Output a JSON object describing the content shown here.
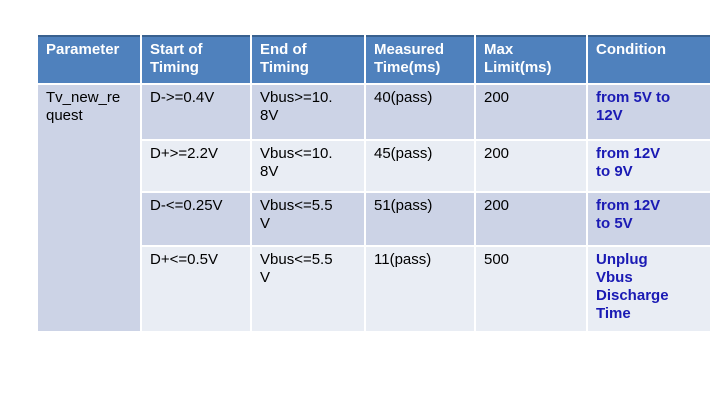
{
  "table": {
    "headers": [
      "Parameter",
      "Start of\nTiming",
      "End of\nTiming",
      "Measured\nTime(ms)",
      "Max\nLimit(ms)",
      "Condition"
    ],
    "parameter_cell": "Tv_new_re\nquest",
    "rows": [
      {
        "start_of_timing": "D->=0.4V",
        "end_of_timing": "Vbus>=10.\n8V",
        "measured_time_ms": "40(pass)",
        "max_limit_ms": "200",
        "condition": "from 5V to\n12V"
      },
      {
        "start_of_timing": "D+>=2.2V",
        "end_of_timing": "Vbus<=10.\n8V",
        "measured_time_ms": "45(pass)",
        "max_limit_ms": "200",
        "condition": "from 12V\nto 9V"
      },
      {
        "start_of_timing": "D-<=0.25V",
        "end_of_timing": "Vbus<=5.5\nV",
        "measured_time_ms": "51(pass)",
        "max_limit_ms": "200",
        "condition": "from 12V\nto 5V"
      },
      {
        "start_of_timing": "D+<=0.5V",
        "end_of_timing": "Vbus<=5.5\nV",
        "measured_time_ms": "11(pass)",
        "max_limit_ms": "500",
        "condition": "Unplug\nVbus\nDischarge\nTime"
      }
    ],
    "colors": {
      "header_bg": "#4f81bd",
      "header_top_border": "#39618f",
      "header_text": "#ffffff",
      "band_dark": "#ccd3e6",
      "band_light": "#e9edf4",
      "body_text": "#000000",
      "condition_text": "#1a1ab4",
      "grid_line": "#ffffff"
    }
  }
}
